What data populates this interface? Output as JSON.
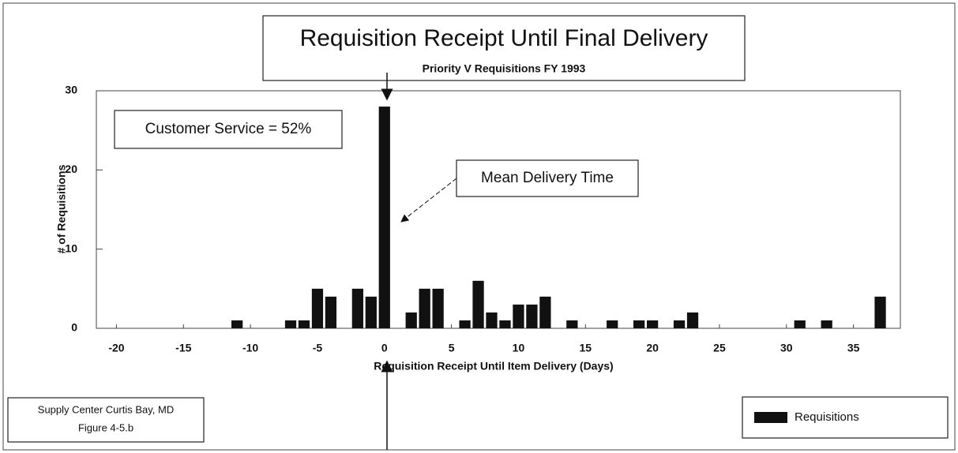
{
  "chart_data": {
    "type": "bar",
    "title": "Requisition Receipt Until Final Delivery",
    "subtitle": "Priority V Requisitions FY 1993",
    "x_label": "Requisition Receipt Until Item Delivery (Days)",
    "y_label": "# of Requisitions",
    "annotations": [
      "Customer Service = 52%",
      "Mean Delivery Time"
    ],
    "footer": [
      "Supply Center Curtis Bay, MD",
      "Figure 4-5.b"
    ],
    "x": [
      -11,
      -7,
      -6,
      -5,
      -4,
      -2,
      -1,
      0,
      2,
      3,
      4,
      6,
      7,
      8,
      9,
      10,
      11,
      12,
      14,
      17,
      19,
      20,
      22,
      23,
      31,
      33,
      37
    ],
    "series": [
      {
        "name": "Requisitions",
        "color": "#111111",
        "values": [
          1,
          1,
          1,
          5,
          4,
          5,
          4,
          28,
          2,
          5,
          5,
          1,
          6,
          2,
          1,
          3,
          3,
          4,
          1,
          1,
          1,
          1,
          1,
          2,
          1,
          1,
          4
        ]
      }
    ],
    "xlim": [
      -21.5,
      38.5
    ],
    "xticks": [
      -20,
      -15,
      -10,
      -5,
      0,
      5,
      10,
      15,
      20,
      25,
      30,
      35
    ],
    "ylim": [
      0,
      30
    ],
    "yticks": [
      0,
      10,
      20,
      30
    ],
    "legend": "bottom-right"
  }
}
